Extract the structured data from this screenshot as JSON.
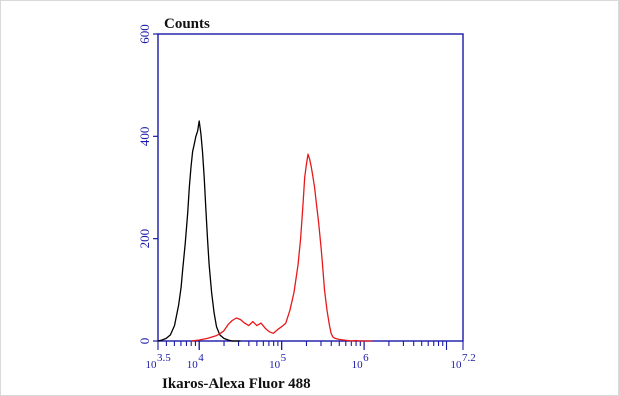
{
  "chart_data": {
    "type": "line",
    "title": "",
    "ylabel": "Counts",
    "xlabel": "Ikaros-Alexa Fluor 488",
    "x_scale": "log10",
    "xlim": [
      3.5,
      7.2
    ],
    "ylim": [
      0,
      600
    ],
    "yticks": [
      {
        "value": 0,
        "label": "0"
      },
      {
        "value": 200,
        "label": "200"
      },
      {
        "value": 400,
        "label": "400"
      },
      {
        "value": 600,
        "label": "600"
      }
    ],
    "xticks": [
      {
        "value": 3.5,
        "base": "10",
        "exp": "3.5"
      },
      {
        "value": 4,
        "base": "10",
        "exp": "4"
      },
      {
        "value": 5,
        "base": "10",
        "exp": "5"
      },
      {
        "value": 6,
        "base": "10",
        "exp": "6"
      },
      {
        "value": 7.2,
        "base": "10",
        "exp": "7.2"
      }
    ],
    "grid": false,
    "legend": "none",
    "colors": {
      "axis": "#1a1aa8",
      "frame_border": "#d9d9d9"
    },
    "series": [
      {
        "color": "#000000",
        "x": [
          3.5,
          3.55,
          3.6,
          3.65,
          3.7,
          3.75,
          3.78,
          3.8,
          3.83,
          3.86,
          3.88,
          3.9,
          3.92,
          3.94,
          3.96,
          3.98,
          4.0,
          4.02,
          4.04,
          4.06,
          4.08,
          4.1,
          4.12,
          4.15,
          4.18,
          4.21,
          4.25,
          4.3,
          4.35,
          4.4,
          4.5
        ],
        "y": [
          0,
          2,
          5,
          12,
          30,
          70,
          105,
          140,
          190,
          250,
          300,
          340,
          370,
          385,
          400,
          410,
          430,
          405,
          370,
          320,
          260,
          200,
          150,
          95,
          55,
          28,
          12,
          5,
          2,
          0,
          0
        ]
      },
      {
        "color": "#e8191b",
        "x": [
          3.9,
          4.0,
          4.1,
          4.2,
          4.25,
          4.3,
          4.35,
          4.4,
          4.45,
          4.5,
          4.55,
          4.6,
          4.65,
          4.7,
          4.75,
          4.8,
          4.85,
          4.9,
          4.95,
          5.0,
          5.05,
          5.1,
          5.15,
          5.2,
          5.23,
          5.26,
          5.28,
          5.3,
          5.32,
          5.34,
          5.36,
          5.38,
          5.4,
          5.42,
          5.45,
          5.48,
          5.5,
          5.52,
          5.55,
          5.58,
          5.6,
          5.62,
          5.65,
          5.7,
          5.75,
          5.8,
          5.85,
          5.9,
          5.95,
          6.0,
          6.1
        ],
        "y": [
          0,
          2,
          5,
          10,
          14,
          20,
          32,
          40,
          45,
          42,
          35,
          30,
          38,
          30,
          35,
          25,
          18,
          15,
          22,
          28,
          35,
          60,
          95,
          150,
          200,
          270,
          320,
          345,
          365,
          355,
          340,
          320,
          300,
          270,
          230,
          180,
          140,
          100,
          60,
          30,
          15,
          8,
          5,
          3,
          2,
          1,
          0,
          1,
          0,
          0,
          0
        ]
      }
    ]
  }
}
